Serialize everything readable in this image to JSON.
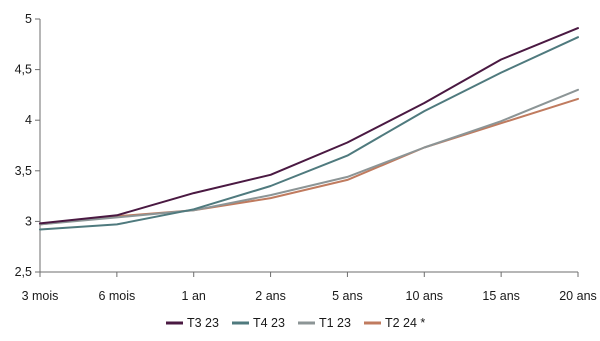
{
  "chart_data": {
    "type": "line",
    "categories": [
      "3 mois",
      "6 mois",
      "1 an",
      "2 ans",
      "5 ans",
      "10 ans",
      "15 ans",
      "20 ans"
    ],
    "ylim": [
      2.5,
      5
    ],
    "yticks": [
      "2,5",
      "3",
      "3,5",
      "4",
      "4,5",
      "5"
    ],
    "ytick_values": [
      2.5,
      3,
      3.5,
      4,
      4.5,
      5
    ],
    "grid": false,
    "legend_position": "bottom",
    "series": [
      {
        "name": "T3 23",
        "color": "#4a1942",
        "values": [
          2.98,
          3.06,
          3.28,
          3.46,
          3.78,
          4.17,
          4.6,
          4.91
        ]
      },
      {
        "name": "T4 23",
        "color": "#4f7a7e",
        "values": [
          2.92,
          2.97,
          3.12,
          3.35,
          3.65,
          4.09,
          4.47,
          4.82
        ]
      },
      {
        "name": "T1 23",
        "color": "#8c9596",
        "values": [
          2.97,
          3.04,
          3.11,
          3.26,
          3.44,
          3.73,
          3.99,
          4.3
        ]
      },
      {
        "name": "T2 24 *",
        "color": "#c07b5f",
        "values": [
          2.97,
          3.05,
          3.11,
          3.23,
          3.41,
          3.73,
          3.97,
          4.21
        ]
      }
    ]
  }
}
